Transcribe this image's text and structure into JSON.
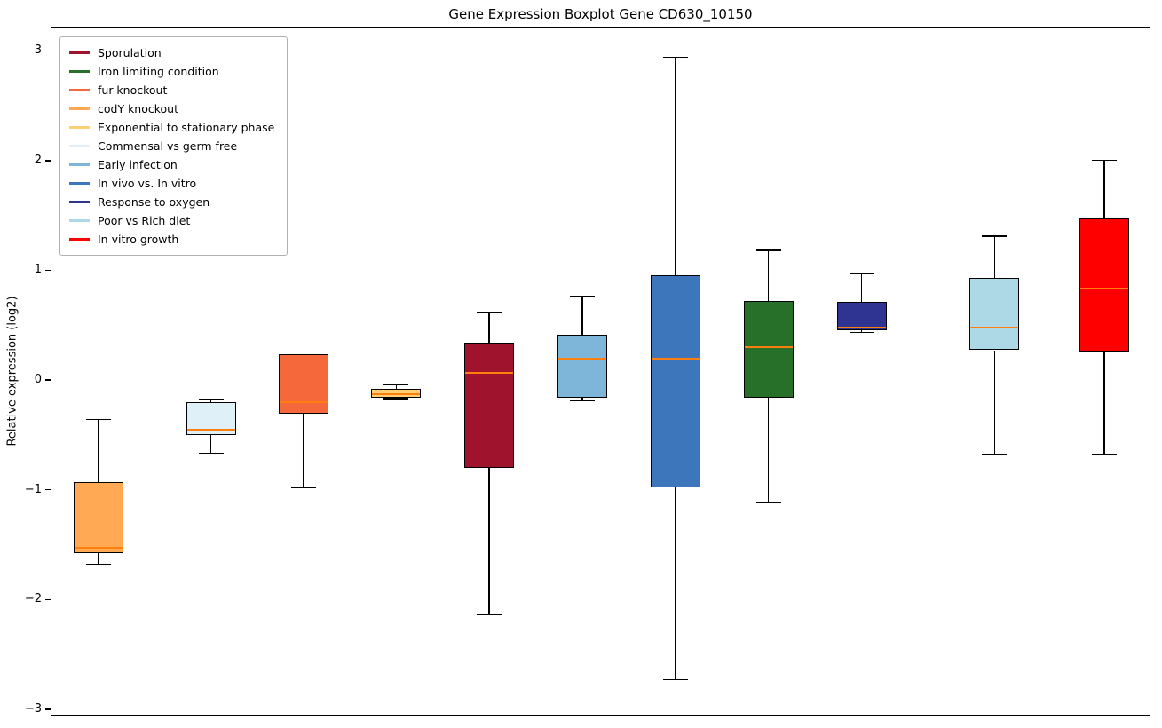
{
  "chart_data": {
    "type": "boxplot",
    "title": "Gene Expression Boxplot Gene CD630_10150",
    "xlabel": "",
    "ylabel": "Relative expression (log2)",
    "ylim": [
      -3.04,
      3.22
    ],
    "yticks": [
      3,
      2,
      1,
      0,
      -1,
      -2,
      -3
    ],
    "ytick_labels": [
      "3",
      "2",
      "1",
      "0",
      "−1",
      "−2",
      "−3"
    ],
    "grid": false,
    "legend_position": "upper left",
    "median_color": "#FF7F0E",
    "whisker_color": "#000000",
    "background_color": "#ffffff",
    "series": [
      {
        "name": "Sporulation",
        "color": "#A0132D",
        "pos": 0.3987,
        "whislo": -2.13,
        "q1": -0.79,
        "med": 0.07,
        "q3": 0.35,
        "whishi": 0.63
      },
      {
        "name": "Iron limiting condition",
        "color": "#26702A",
        "pos": 0.6529,
        "whislo": -1.11,
        "q1": -0.15,
        "med": 0.31,
        "q3": 0.73,
        "whishi": 1.19
      },
      {
        "name": "fur knockout",
        "color": "#F4683C",
        "pos": 0.2292,
        "whislo": -0.97,
        "q1": -0.3,
        "med": -0.19,
        "q3": 0.24,
        "whishi": 0.24
      },
      {
        "name": "codY knockout",
        "color": "#FFA954",
        "pos": 0.0428,
        "whislo": -1.67,
        "q1": -1.57,
        "med": -1.52,
        "q3": -0.92,
        "whishi": -0.35
      },
      {
        "name": "Exponential to stationary phase",
        "color": "#FFCE73",
        "pos": 0.314,
        "whislo": -0.16,
        "q1": -0.15,
        "med": -0.12,
        "q3": -0.07,
        "whishi": -0.03
      },
      {
        "name": "Commensal vs germ free",
        "color": "#E0F0F8",
        "pos": 0.1453,
        "whislo": -0.66,
        "q1": -0.49,
        "med": -0.44,
        "q3": -0.19,
        "whishi": -0.17
      },
      {
        "name": "Early infection",
        "color": "#7EB6D9",
        "pos": 0.4834,
        "whislo": -0.18,
        "q1": -0.15,
        "med": 0.2,
        "q3": 0.42,
        "whishi": 0.77
      },
      {
        "name": "In vivo vs. In vitro",
        "color": "#3E76BC",
        "pos": 0.5682,
        "whislo": -2.72,
        "q1": -0.97,
        "med": 0.2,
        "q3": 0.96,
        "whishi": 2.95
      },
      {
        "name": "Response to oxygen",
        "color": "#2F3392",
        "pos": 0.7377,
        "whislo": 0.44,
        "q1": 0.46,
        "med": 0.49,
        "q3": 0.72,
        "whishi": 0.98
      },
      {
        "name": "Poor vs Rich diet",
        "color": "#ADD8E6",
        "pos": 0.8588,
        "whislo": -0.67,
        "q1": 0.28,
        "med": 0.49,
        "q3": 0.94,
        "whishi": 1.32
      },
      {
        "name": "In vitro growth",
        "color": "#FF0000",
        "pos": 0.9588,
        "whislo": -0.67,
        "q1": 0.27,
        "med": 0.84,
        "q3": 1.48,
        "whishi": 2.01
      }
    ]
  }
}
